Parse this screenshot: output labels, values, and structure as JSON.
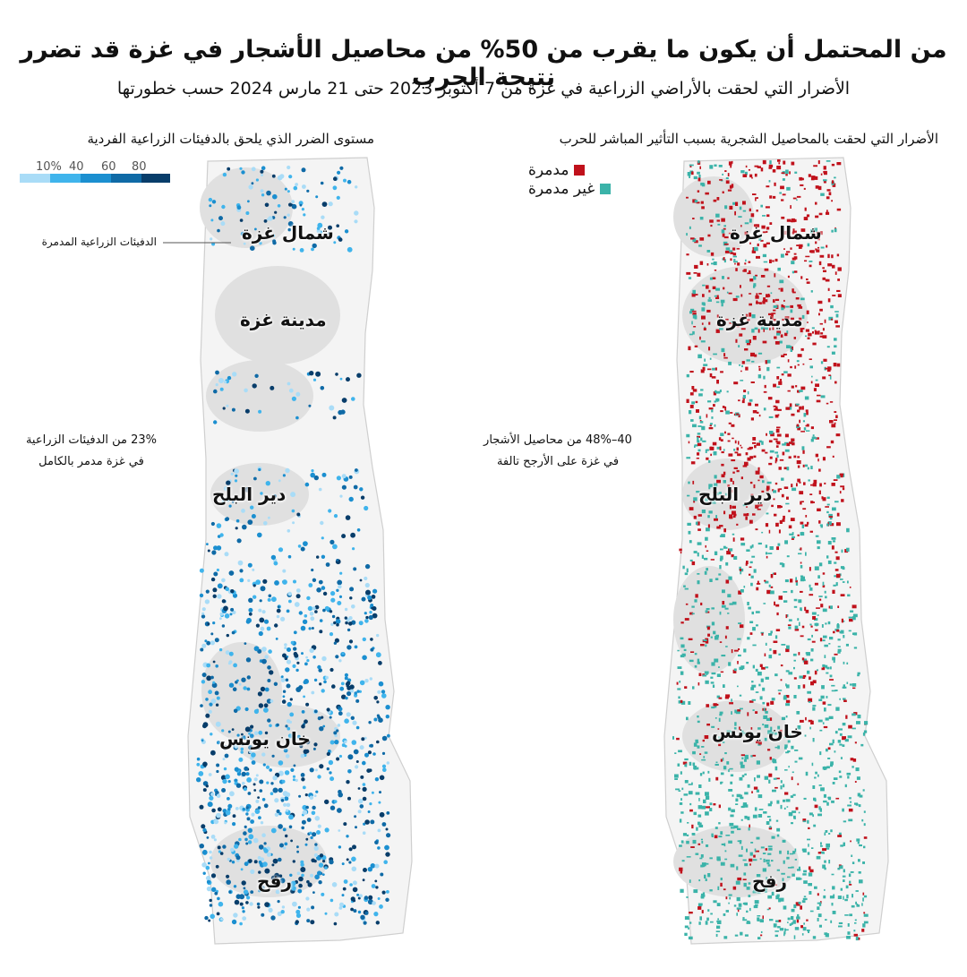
{
  "title": "من المحتمل أن يكون ما يقرب من 50% من محاصيل الأشجار في غزة قد تضرر نتيجة الحرب",
  "subtitle": "الأضرار التي لحقت بالأراضي الزراعية في غزة من 7 أكتوبر 2023 حتى 21 مارس 2024 حسب خطورتها",
  "left_map": {
    "title": "مستوى الضرر الذي يلحق بالدفيئات الزراعية الفردية",
    "scale": {
      "labels": [
        "10%",
        "40",
        "60",
        "80"
      ],
      "colors": [
        "#a9dcf7",
        "#3fb4ec",
        "#1b8fd0",
        "#0f6aa6",
        "#083d6a"
      ]
    },
    "callout": "الدفيئات الزراعية المدمرة",
    "note_line1": "23% من الدفيئات الزراعية",
    "note_line2": "في غزة مدمر بالكامل",
    "cities": [
      "شمال غزة",
      "مدينة غزة",
      "دير البلح",
      "خان يونس",
      "رفح"
    ]
  },
  "right_map": {
    "title": "الأضرار التي لحقت بالمحاصيل الشجرية بسبب التأثير المباشر للحرب",
    "legend": [
      {
        "label": "مدمرة",
        "color": "#c0111b"
      },
      {
        "label": "غير مدمرة",
        "color": "#3bb3a9"
      }
    ],
    "note_line1": "40–48% من محاصيل الأشجار",
    "note_line2": "في غزة على الأرجح تالفة",
    "cities": [
      "شمال غزة",
      "مدينة غزة",
      "دير البلح",
      "خان يونس",
      "رفح"
    ]
  },
  "colors": {
    "land": "#e2e2e2",
    "outline": "#bdbdbd",
    "destroyed": "#c0111b",
    "not_destroyed": "#3bb3a9",
    "damage_dark": "#083d6a"
  }
}
